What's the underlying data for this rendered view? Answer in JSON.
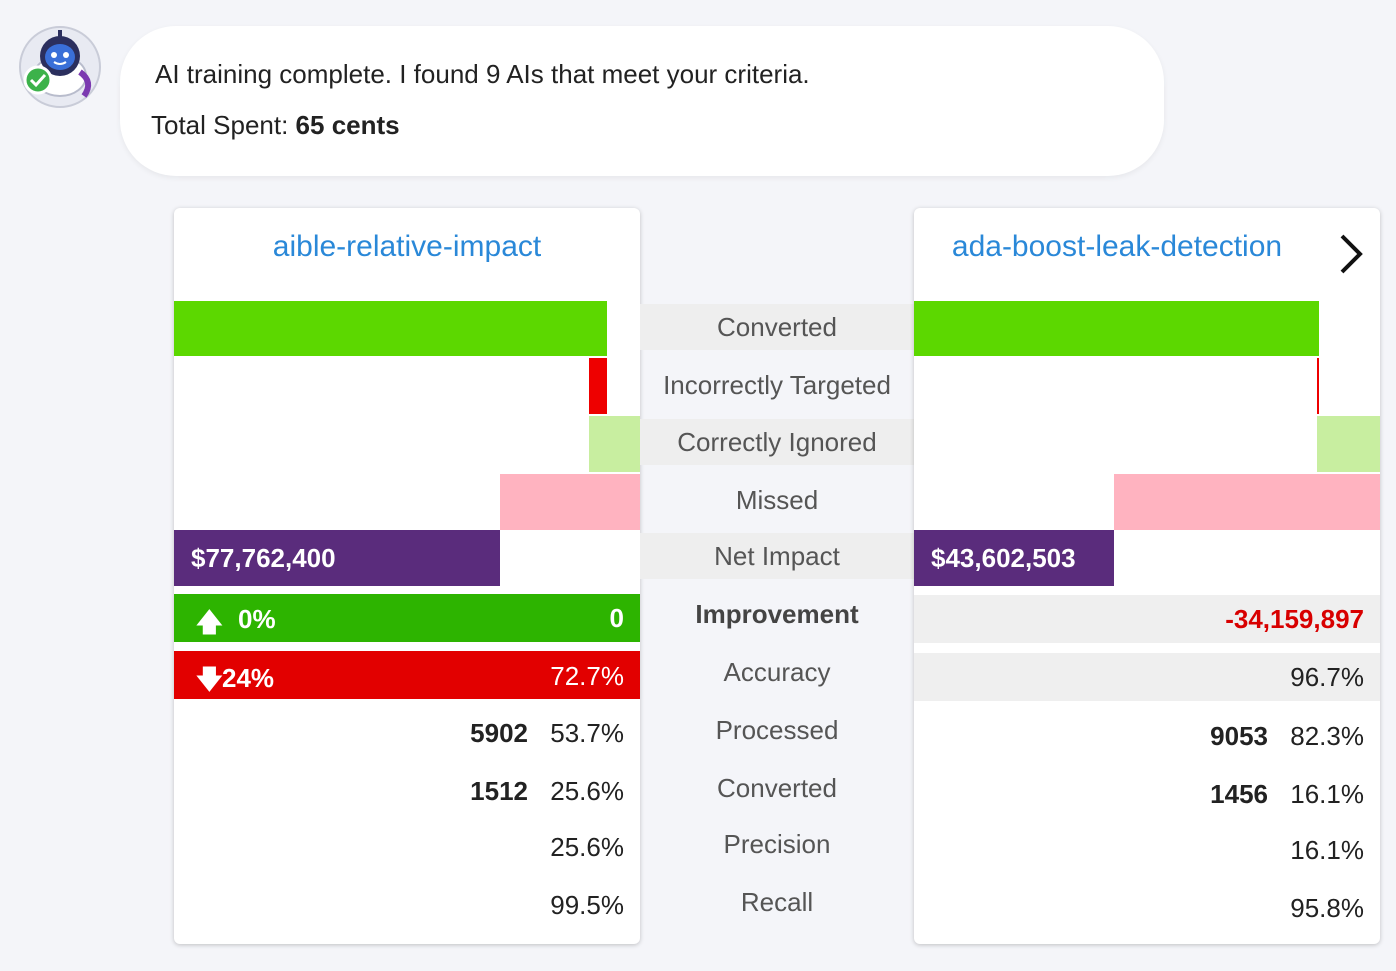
{
  "colors": {
    "converted": "#5cd800",
    "incorrectly_targeted": "#ee0000",
    "correctly_ignored": "#c8eea0",
    "missed": "#ffb3c0",
    "net_impact": "#5a2c7c",
    "improvement_up": "#2db400",
    "accuracy_down": "#e20000",
    "title_link": "#2a88d8"
  },
  "message": {
    "text": "AI training complete. I found 9 AIs that meet your criteria.",
    "spent_label": "Total Spent:",
    "spent_value": "65 cents"
  },
  "metric_labels": {
    "converted": "Converted",
    "incorrectly_targeted": "Incorrectly Targeted",
    "correctly_ignored": "Correctly Ignored",
    "missed": "Missed",
    "net_impact": "Net Impact",
    "improvement": "Improvement",
    "accuracy": "Accuracy",
    "processed": "Processed",
    "converted2": "Converted",
    "precision": "Precision",
    "recall": "Recall"
  },
  "models": [
    {
      "name": "aible-relative-impact",
      "bar_fractions": {
        "converted": 0.93,
        "incorrectly_targeted": 0.04,
        "correctly_ignored": 0.11,
        "missed": 0.3,
        "net_impact": 0.7
      },
      "net_impact": "$77,762,400",
      "improvement": {
        "arrow": "🡅",
        "pct": "0%",
        "value": "0"
      },
      "accuracy": {
        "arrow": "🡇",
        "pct": "24%",
        "value": "72.7%"
      },
      "processed": {
        "count": "5902",
        "pct": "53.7%"
      },
      "converted": {
        "count": "1512",
        "pct": "25.6%"
      },
      "precision": "25.6%",
      "recall": "99.5%"
    },
    {
      "name": "ada-boost-leak-detection",
      "bar_fractions": {
        "converted": 0.87,
        "incorrectly_targeted": 0.005,
        "correctly_ignored": 0.135,
        "missed": 0.57,
        "net_impact": 0.43
      },
      "net_impact": "$43,602,503",
      "improvement": {
        "value": "-34,159,897"
      },
      "accuracy": {
        "value": "96.7%"
      },
      "processed": {
        "count": "9053",
        "pct": "82.3%"
      },
      "converted": {
        "count": "1456",
        "pct": "16.1%"
      },
      "precision": "16.1%",
      "recall": "95.8%"
    }
  ]
}
